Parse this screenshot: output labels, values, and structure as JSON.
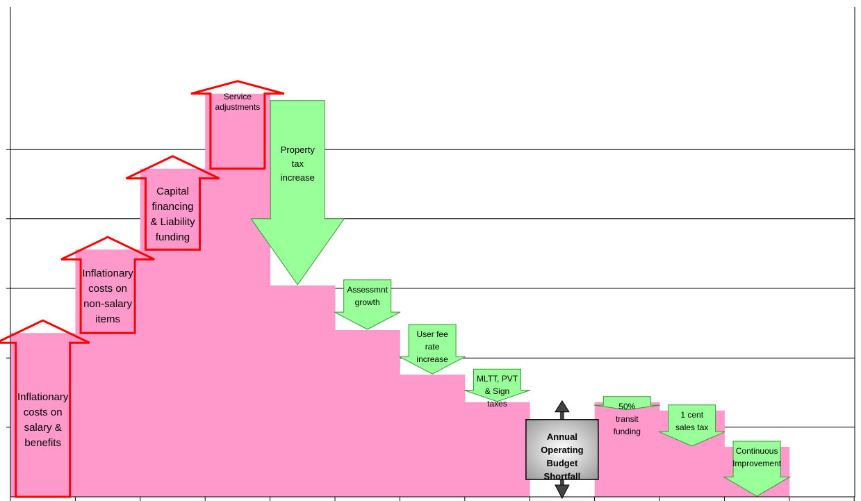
{
  "chart_data": {
    "type": "bar",
    "subtype": "waterfall",
    "title": "",
    "xlabel": "",
    "ylabel": "",
    "ylim": [
      0,
      100
    ],
    "grid": true,
    "gridlines": [
      16.7,
      33.3,
      50,
      66.7,
      83.3
    ],
    "legend": "none",
    "colors": {
      "bar": "#ff99cc",
      "increase_stroke": "#ff0000",
      "decrease_fill": "#99ff99",
      "decrease_stroke": "#339933",
      "shortfall_fill": "#999999",
      "shortfall_stroke": "#000000"
    },
    "bars": [
      {
        "base": 0,
        "top": 39.3
      },
      {
        "base": 0,
        "top": 59.3
      },
      {
        "base": 0,
        "top": 78.7
      },
      {
        "base": 0,
        "top": 96.7
      },
      {
        "base": 0,
        "top": 50.7
      },
      {
        "base": 0,
        "top": 40.0
      },
      {
        "base": 0,
        "top": 29.3
      },
      {
        "base": 0,
        "top": 22.7
      },
      {
        "base": 0,
        "top": 0
      },
      {
        "base": 0,
        "top": 22.7
      },
      {
        "base": 0,
        "top": 20.7
      },
      {
        "base": 0,
        "top": 12.0
      },
      {
        "base": 0,
        "top": 0
      }
    ],
    "steps": [
      {
        "label": "Inflationary costs on salary & benefits",
        "lines": [
          "Inflationary",
          "costs on",
          "salary &",
          "benefits"
        ],
        "direction": "up",
        "from": 0,
        "to": 39.3
      },
      {
        "label": "Inflationary costs on non-salary items",
        "lines": [
          "Inflationary",
          "costs on",
          "non-salary",
          "items"
        ],
        "direction": "up",
        "from": 39.3,
        "to": 59.3
      },
      {
        "label": "Capital financing & Liability funding",
        "lines": [
          "Capital",
          "financing",
          "& Liability",
          "funding"
        ],
        "direction": "up",
        "from": 59.3,
        "to": 78.7
      },
      {
        "label": "Service adjustments",
        "lines": [
          "Service",
          "adjustments"
        ],
        "direction": "up",
        "from": 78.7,
        "to": 96.7
      },
      {
        "label": "Property tax increase",
        "lines": [
          "Property",
          "tax",
          "increase"
        ],
        "direction": "down",
        "from": 96.7,
        "to": 50.7
      },
      {
        "label": "Assessmnt growth",
        "lines": [
          "Assessmnt",
          "growth"
        ],
        "direction": "down",
        "from": 50.7,
        "to": 40.0
      },
      {
        "label": "User fee rate increase",
        "lines": [
          "User fee",
          "rate",
          "increase"
        ],
        "direction": "down",
        "from": 40.0,
        "to": 29.3
      },
      {
        "label": "MLTT, PVT & Sign taxes",
        "lines": [
          "MLTT, PVT",
          "& Sign",
          "taxes"
        ],
        "direction": "down",
        "from": 29.3,
        "to": 22.7
      },
      {
        "label": "Annual Operating Budget Shortfall",
        "lines": [
          "Annual",
          "Operating",
          "Budget",
          "Shortfall"
        ],
        "direction": "both",
        "from": 0,
        "to": 22.7
      },
      {
        "label": "50% transit funding",
        "lines": [
          "50%",
          "transit",
          "funding"
        ],
        "direction": "down",
        "from": 22.7,
        "to": 20.7
      },
      {
        "label": "1 cent sales tax",
        "lines": [
          "1 cent",
          "sales tax"
        ],
        "direction": "down",
        "from": 20.7,
        "to": 12.0
      },
      {
        "label": "Continuous Improvement",
        "lines": [
          "Continuous",
          "Improvement"
        ],
        "direction": "down",
        "from": 12.0,
        "to": 0
      }
    ]
  }
}
